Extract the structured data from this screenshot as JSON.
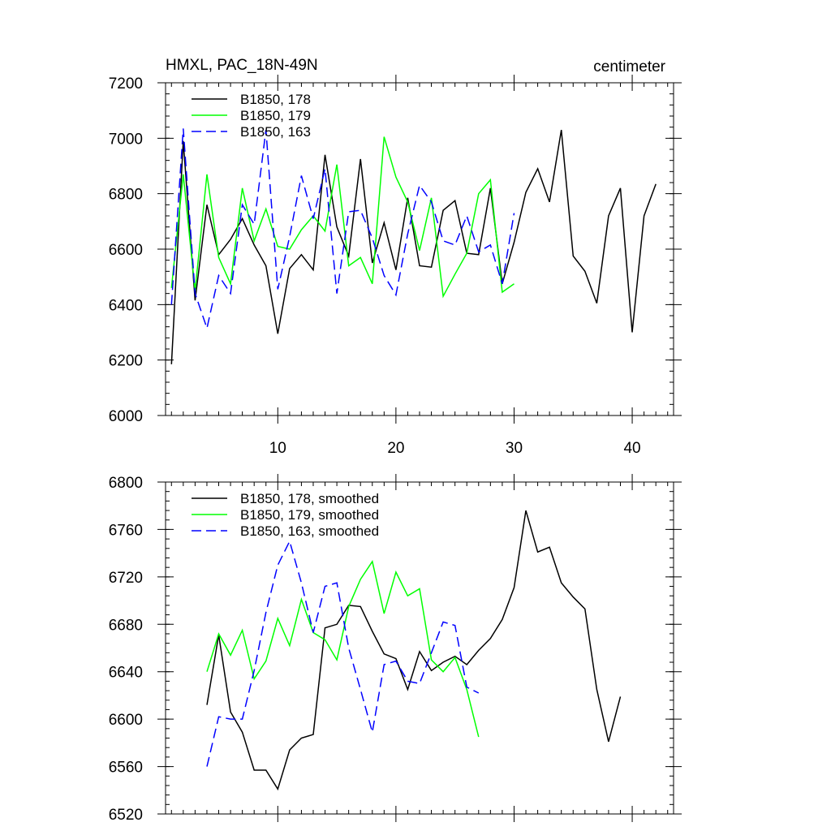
{
  "chart_data": [
    {
      "type": "line",
      "title": "HMXL, PAC_18N-49N",
      "units": "centimeter",
      "xlabel": "",
      "ylabel": "",
      "xlim": [
        0.5,
        43.5
      ],
      "ylim": [
        6000,
        7200
      ],
      "x_major_ticks": [
        10,
        20,
        30,
        40
      ],
      "y_major_ticks": [
        6000,
        6200,
        6400,
        6600,
        6800,
        7000,
        7200
      ],
      "legend_position": "top-left",
      "grid": false,
      "series": [
        {
          "name": "B1850, 178",
          "color": "#000000",
          "dash": "solid",
          "x": [
            1,
            2,
            3,
            4,
            5,
            6,
            7,
            8,
            9,
            10,
            11,
            12,
            13,
            14,
            15,
            16,
            17,
            18,
            19,
            20,
            21,
            22,
            23,
            24,
            25,
            26,
            27,
            28,
            29,
            30,
            31,
            32,
            33,
            34,
            35,
            36,
            37,
            38,
            39,
            40,
            41,
            42
          ],
          "y": [
            6185,
            6990,
            6415,
            6760,
            6580,
            6635,
            6710,
            6615,
            6540,
            6295,
            6530,
            6580,
            6525,
            6940,
            6680,
            6575,
            6925,
            6550,
            6695,
            6525,
            6785,
            6540,
            6535,
            6740,
            6775,
            6585,
            6580,
            6820,
            6475,
            6625,
            6805,
            6890,
            6770,
            7030,
            6575,
            6520,
            6405,
            6720,
            6820,
            6300,
            6720,
            6835
          ]
        },
        {
          "name": "B1850, 179",
          "color": "#00ff00",
          "dash": "solid",
          "x": [
            1,
            2,
            3,
            4,
            5,
            6,
            7,
            8,
            9,
            10,
            11,
            12,
            13,
            14,
            15,
            16,
            17,
            18,
            19,
            20,
            21,
            22,
            23,
            24,
            25,
            26,
            27,
            28,
            29,
            30
          ],
          "y": [
            6460,
            6870,
            6450,
            6870,
            6570,
            6475,
            6820,
            6630,
            6745,
            6610,
            6600,
            6670,
            6720,
            6665,
            6905,
            6540,
            6570,
            6475,
            7005,
            6860,
            6770,
            6595,
            6785,
            6430,
            6510,
            6585,
            6800,
            6850,
            6445,
            6475
          ]
        },
        {
          "name": "B1850, 163",
          "color": "#0000ff",
          "dash": "dashed",
          "x": [
            1,
            2,
            3,
            4,
            5,
            6,
            7,
            8,
            9,
            10,
            11,
            12,
            13,
            14,
            15,
            16,
            17,
            18,
            19,
            20,
            21,
            22,
            23,
            24,
            25,
            26,
            27,
            28,
            29,
            30
          ],
          "y": [
            6400,
            7035,
            6440,
            6315,
            6505,
            6440,
            6760,
            6690,
            7030,
            6455,
            6645,
            6865,
            6710,
            6890,
            6440,
            6735,
            6740,
            6640,
            6505,
            6435,
            6655,
            6830,
            6770,
            6630,
            6615,
            6720,
            6590,
            6615,
            6475,
            6730
          ]
        }
      ]
    },
    {
      "type": "line",
      "title": "",
      "units": "",
      "xlabel": "",
      "ylabel": "",
      "xlim": [
        0.5,
        43.5
      ],
      "ylim": [
        6520,
        6800
      ],
      "x_major_ticks": [
        10,
        20,
        30,
        40
      ],
      "y_major_ticks": [
        6520,
        6560,
        6600,
        6640,
        6680,
        6720,
        6760,
        6800
      ],
      "legend_position": "top-left",
      "grid": false,
      "series": [
        {
          "name": "B1850, 178, smoothed",
          "color": "#000000",
          "dash": "solid",
          "x": [
            4,
            5,
            6,
            7,
            8,
            9,
            10,
            11,
            12,
            13,
            14,
            15,
            16,
            17,
            18,
            19,
            20,
            21,
            22,
            23,
            24,
            25,
            26,
            27,
            28,
            29,
            30,
            31,
            32,
            33,
            34,
            35,
            36,
            37,
            38,
            39
          ],
          "y": [
            6612,
            6671,
            6606,
            6589,
            6557,
            6557,
            6541,
            6574,
            6584,
            6587,
            6677,
            6680,
            6696,
            6695,
            6674,
            6655,
            6651,
            6625,
            6657,
            6641,
            6648,
            6653,
            6646,
            6658,
            6668,
            6684,
            6711,
            6776,
            6741,
            6745,
            6715,
            6703,
            6693,
            6625,
            6581,
            6619
          ]
        },
        {
          "name": "B1850, 179, smoothed",
          "color": "#00ff00",
          "dash": "solid",
          "x": [
            4,
            5,
            6,
            7,
            8,
            9,
            10,
            11,
            12,
            13,
            14,
            15,
            16,
            17,
            18,
            19,
            20,
            21,
            22,
            23,
            24,
            25,
            26,
            27
          ],
          "y": [
            6640,
            6672,
            6654,
            6675,
            6634,
            6649,
            6685,
            6662,
            6701,
            6673,
            6667,
            6650,
            6695,
            6718,
            6733,
            6689,
            6724,
            6704,
            6710,
            6650,
            6640,
            6652,
            6625,
            6585
          ]
        },
        {
          "name": "B1850, 163, smoothed",
          "color": "#0000ff",
          "dash": "dashed",
          "x": [
            4,
            5,
            6,
            7,
            8,
            9,
            10,
            11,
            12,
            13,
            14,
            15,
            16,
            17,
            18,
            19,
            20,
            21,
            22,
            23,
            24,
            25,
            26,
            27
          ],
          "y": [
            6560,
            6602,
            6600,
            6600,
            6641,
            6690,
            6730,
            6750,
            6715,
            6673,
            6712,
            6715,
            6660,
            6625,
            6589,
            6646,
            6649,
            6632,
            6630,
            6656,
            6682,
            6679,
            6627,
            6622
          ]
        }
      ]
    }
  ]
}
